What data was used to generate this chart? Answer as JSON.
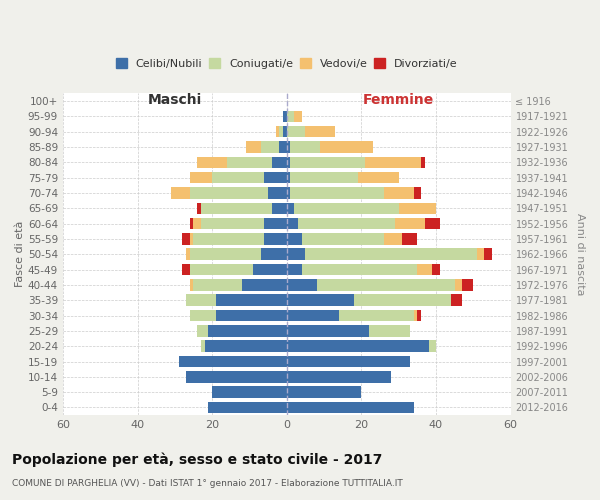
{
  "age_groups": [
    "0-4",
    "5-9",
    "10-14",
    "15-19",
    "20-24",
    "25-29",
    "30-34",
    "35-39",
    "40-44",
    "45-49",
    "50-54",
    "55-59",
    "60-64",
    "65-69",
    "70-74",
    "75-79",
    "80-84",
    "85-89",
    "90-94",
    "95-99",
    "100+"
  ],
  "birth_years": [
    "2012-2016",
    "2007-2011",
    "2002-2006",
    "1997-2001",
    "1992-1996",
    "1987-1991",
    "1982-1986",
    "1977-1981",
    "1972-1976",
    "1967-1971",
    "1962-1966",
    "1957-1961",
    "1952-1956",
    "1947-1951",
    "1942-1946",
    "1937-1941",
    "1932-1936",
    "1927-1931",
    "1922-1926",
    "1917-1921",
    "≤ 1916"
  ],
  "colors": {
    "celibe": "#3e6fa8",
    "coniugato": "#c5d9a0",
    "vedovo": "#f4c06f",
    "divorziato": "#cc2222"
  },
  "males": {
    "celibe": [
      21,
      20,
      27,
      29,
      22,
      21,
      19,
      19,
      12,
      9,
      7,
      6,
      6,
      4,
      5,
      6,
      4,
      2,
      1,
      1,
      0
    ],
    "coniugato": [
      0,
      0,
      0,
      0,
      1,
      3,
      7,
      8,
      13,
      17,
      19,
      19,
      17,
      19,
      21,
      14,
      12,
      5,
      1,
      0,
      0
    ],
    "vedovo": [
      0,
      0,
      0,
      0,
      0,
      0,
      0,
      0,
      1,
      0,
      1,
      1,
      2,
      0,
      5,
      6,
      8,
      4,
      1,
      0,
      0
    ],
    "divorziato": [
      0,
      0,
      0,
      0,
      0,
      0,
      0,
      0,
      0,
      2,
      0,
      2,
      1,
      1,
      0,
      0,
      0,
      0,
      0,
      0,
      0
    ]
  },
  "females": {
    "nubile": [
      34,
      20,
      28,
      33,
      38,
      22,
      14,
      18,
      8,
      4,
      5,
      4,
      3,
      2,
      1,
      1,
      1,
      1,
      0,
      0,
      0
    ],
    "coniugata": [
      0,
      0,
      0,
      0,
      2,
      11,
      20,
      26,
      37,
      31,
      46,
      22,
      26,
      28,
      25,
      18,
      20,
      8,
      5,
      2,
      0
    ],
    "vedova": [
      0,
      0,
      0,
      0,
      0,
      0,
      1,
      0,
      2,
      4,
      2,
      5,
      8,
      10,
      8,
      11,
      15,
      14,
      8,
      2,
      0
    ],
    "divorziata": [
      0,
      0,
      0,
      0,
      0,
      0,
      1,
      3,
      3,
      2,
      2,
      4,
      4,
      0,
      2,
      0,
      1,
      0,
      0,
      0,
      0
    ]
  },
  "xlim": 60,
  "title": "Popolazione per età, sesso e stato civile - 2017",
  "subtitle": "COMUNE DI PARGHELIA (VV) - Dati ISTAT 1° gennaio 2017 - Elaborazione TUTTITALIA.IT",
  "xlabel_left": "Maschi",
  "xlabel_right": "Femmine",
  "ylabel": "Fasce di età",
  "ylabel_right": "Anni di nascita",
  "legend_labels": [
    "Celibi/Nubili",
    "Coniugati/e",
    "Vedovi/e",
    "Divorziati/e"
  ],
  "bg_color": "#f0f0eb",
  "plot_bg_color": "#ffffff"
}
